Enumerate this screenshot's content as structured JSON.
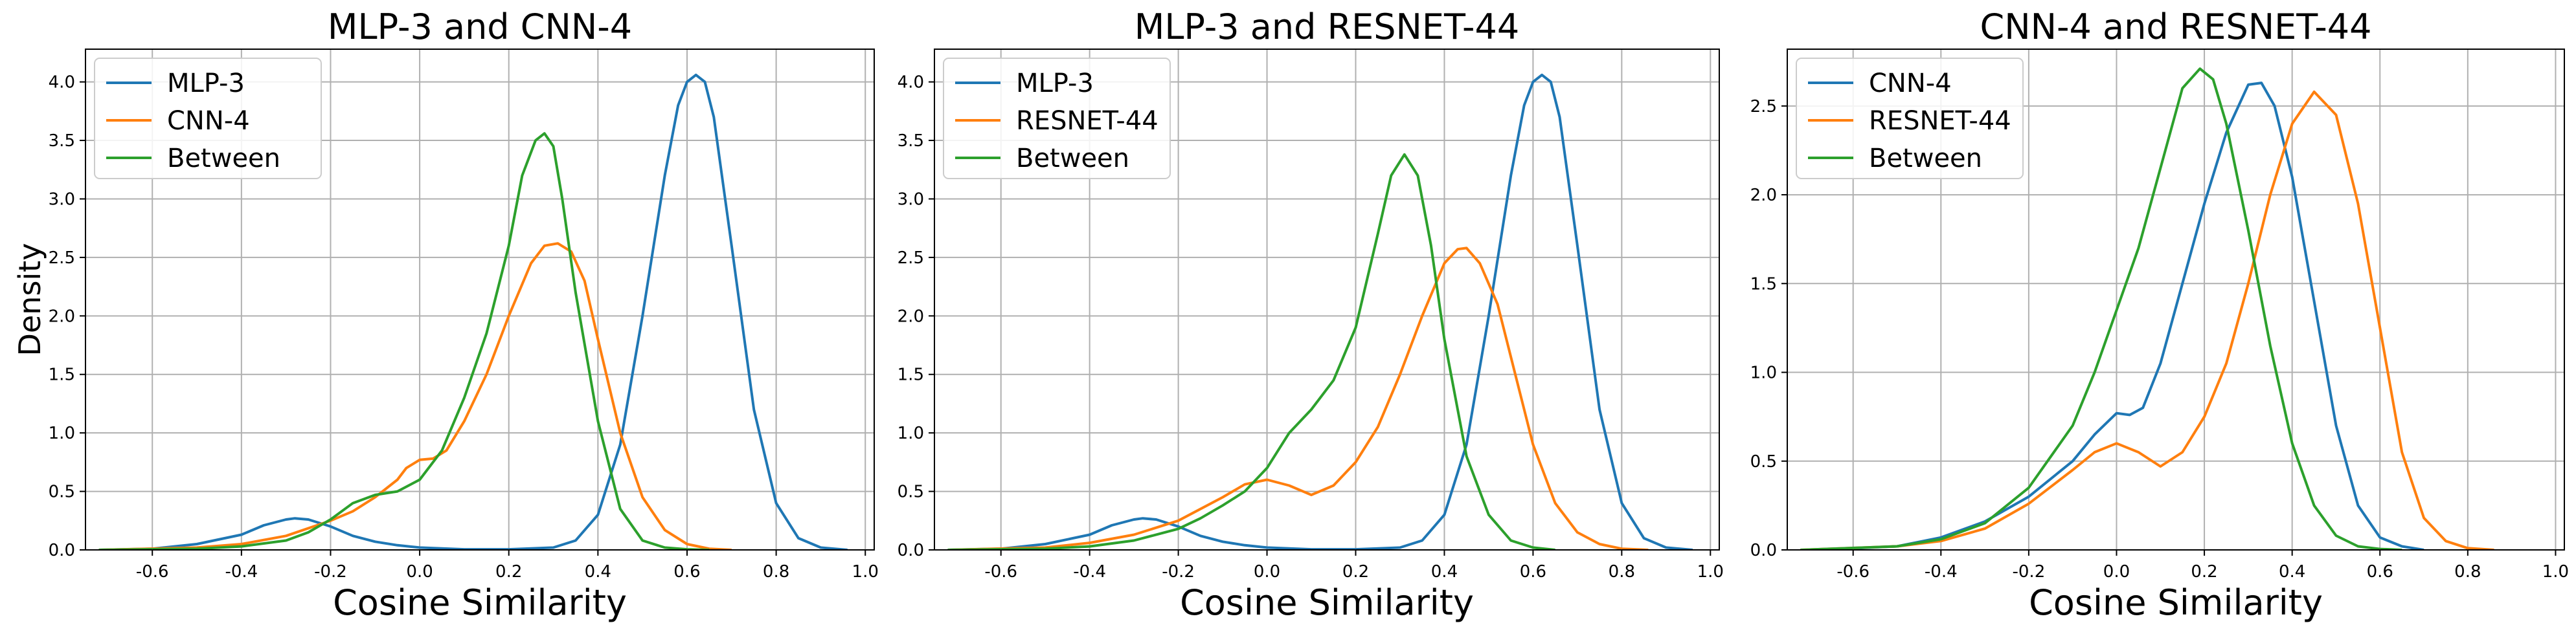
{
  "chart_data": [
    {
      "type": "line",
      "title": "MLP-3 and CNN-4",
      "xlabel": "Cosine Similarity",
      "ylabel": "Density",
      "xlim": [
        -0.75,
        1.02
      ],
      "ylim": [
        0,
        4.28
      ],
      "xticks": [
        "-0.6",
        "-0.4",
        "-0.2",
        "0.0",
        "0.2",
        "0.4",
        "0.6",
        "0.8",
        "1.0"
      ],
      "yticks": [
        "0.0",
        "0.5",
        "1.0",
        "1.5",
        "2.0",
        "2.5",
        "3.0",
        "3.5",
        "4.0"
      ],
      "grid": true,
      "legend_position": "top-left",
      "series": [
        {
          "name": "MLP-3",
          "color": "#1f77b4",
          "x": [
            -0.72,
            -0.6,
            -0.5,
            -0.4,
            -0.35,
            -0.3,
            -0.28,
            -0.25,
            -0.2,
            -0.15,
            -0.1,
            -0.05,
            0.0,
            0.1,
            0.2,
            0.3,
            0.35,
            0.4,
            0.45,
            0.5,
            0.55,
            0.58,
            0.6,
            0.62,
            0.64,
            0.66,
            0.7,
            0.75,
            0.8,
            0.85,
            0.9,
            0.96
          ],
          "y": [
            0,
            0.01,
            0.05,
            0.13,
            0.21,
            0.26,
            0.27,
            0.26,
            0.2,
            0.12,
            0.07,
            0.04,
            0.02,
            0.005,
            0.005,
            0.02,
            0.08,
            0.3,
            0.9,
            2.0,
            3.2,
            3.8,
            4.0,
            4.06,
            4.0,
            3.7,
            2.6,
            1.2,
            0.4,
            0.1,
            0.02,
            0
          ]
        },
        {
          "name": "CNN-4",
          "color": "#ff7f0e",
          "x": [
            -0.72,
            -0.5,
            -0.4,
            -0.3,
            -0.2,
            -0.15,
            -0.1,
            -0.05,
            -0.03,
            0.0,
            0.03,
            0.06,
            0.1,
            0.15,
            0.2,
            0.25,
            0.28,
            0.31,
            0.34,
            0.37,
            0.4,
            0.45,
            0.5,
            0.55,
            0.6,
            0.65,
            0.7
          ],
          "y": [
            0,
            0.02,
            0.05,
            0.12,
            0.25,
            0.33,
            0.45,
            0.6,
            0.7,
            0.77,
            0.78,
            0.85,
            1.1,
            1.5,
            2.0,
            2.45,
            2.6,
            2.62,
            2.55,
            2.3,
            1.8,
            1.0,
            0.45,
            0.17,
            0.05,
            0.01,
            0
          ]
        },
        {
          "name": "Between",
          "color": "#2ca02c",
          "x": [
            -0.72,
            -0.5,
            -0.4,
            -0.3,
            -0.25,
            -0.2,
            -0.15,
            -0.1,
            -0.05,
            0.0,
            0.05,
            0.1,
            0.15,
            0.2,
            0.23,
            0.26,
            0.28,
            0.3,
            0.32,
            0.35,
            0.4,
            0.45,
            0.5,
            0.55,
            0.6,
            0.65
          ],
          "y": [
            0,
            0.01,
            0.03,
            0.08,
            0.15,
            0.26,
            0.4,
            0.47,
            0.5,
            0.6,
            0.85,
            1.3,
            1.85,
            2.6,
            3.2,
            3.5,
            3.56,
            3.45,
            3.0,
            2.2,
            1.1,
            0.35,
            0.08,
            0.02,
            0.005,
            0
          ]
        }
      ]
    },
    {
      "type": "line",
      "title": "MLP-3 and RESNET-44",
      "xlabel": "Cosine Similarity",
      "ylabel": "",
      "xlim": [
        -0.75,
        1.02
      ],
      "ylim": [
        0,
        4.28
      ],
      "xticks": [
        "-0.6",
        "-0.4",
        "-0.2",
        "0.0",
        "0.2",
        "0.4",
        "0.6",
        "0.8",
        "1.0"
      ],
      "yticks": [
        "0.0",
        "0.5",
        "1.0",
        "1.5",
        "2.0",
        "2.5",
        "3.0",
        "3.5",
        "4.0"
      ],
      "grid": true,
      "legend_position": "top-left",
      "series": [
        {
          "name": "MLP-3",
          "color": "#1f77b4",
          "x": [
            -0.72,
            -0.6,
            -0.5,
            -0.4,
            -0.35,
            -0.3,
            -0.28,
            -0.25,
            -0.2,
            -0.15,
            -0.1,
            -0.05,
            0.0,
            0.1,
            0.2,
            0.3,
            0.35,
            0.4,
            0.45,
            0.5,
            0.55,
            0.58,
            0.6,
            0.62,
            0.64,
            0.66,
            0.7,
            0.75,
            0.8,
            0.85,
            0.9,
            0.96
          ],
          "y": [
            0,
            0.01,
            0.05,
            0.13,
            0.21,
            0.26,
            0.27,
            0.26,
            0.2,
            0.12,
            0.07,
            0.04,
            0.02,
            0.005,
            0.005,
            0.02,
            0.08,
            0.3,
            0.9,
            2.0,
            3.2,
            3.8,
            4.0,
            4.06,
            4.0,
            3.7,
            2.6,
            1.2,
            0.4,
            0.1,
            0.02,
            0
          ]
        },
        {
          "name": "RESNET-44",
          "color": "#ff7f0e",
          "x": [
            -0.72,
            -0.5,
            -0.4,
            -0.3,
            -0.2,
            -0.1,
            -0.05,
            0.0,
            0.05,
            0.1,
            0.15,
            0.2,
            0.25,
            0.3,
            0.35,
            0.4,
            0.43,
            0.45,
            0.48,
            0.52,
            0.56,
            0.6,
            0.65,
            0.7,
            0.75,
            0.8,
            0.86
          ],
          "y": [
            0,
            0.02,
            0.06,
            0.13,
            0.25,
            0.45,
            0.56,
            0.6,
            0.55,
            0.47,
            0.55,
            0.75,
            1.05,
            1.5,
            2.0,
            2.45,
            2.57,
            2.58,
            2.45,
            2.1,
            1.5,
            0.9,
            0.4,
            0.15,
            0.05,
            0.01,
            0
          ]
        },
        {
          "name": "Between",
          "color": "#2ca02c",
          "x": [
            -0.72,
            -0.5,
            -0.4,
            -0.3,
            -0.2,
            -0.15,
            -0.1,
            -0.05,
            0.0,
            0.05,
            0.1,
            0.15,
            0.2,
            0.25,
            0.28,
            0.31,
            0.34,
            0.37,
            0.4,
            0.45,
            0.5,
            0.55,
            0.6,
            0.65
          ],
          "y": [
            0,
            0.01,
            0.03,
            0.08,
            0.18,
            0.27,
            0.38,
            0.5,
            0.7,
            1.0,
            1.2,
            1.45,
            1.9,
            2.7,
            3.2,
            3.38,
            3.2,
            2.6,
            1.8,
            0.8,
            0.3,
            0.08,
            0.02,
            0
          ]
        }
      ]
    },
    {
      "type": "line",
      "title": "CNN-4 and RESNET-44",
      "xlabel": "Cosine Similarity",
      "ylabel": "",
      "xlim": [
        -0.75,
        1.02
      ],
      "ylim": [
        0,
        2.82
      ],
      "xticks": [
        "-0.6",
        "-0.4",
        "-0.2",
        "0.0",
        "0.2",
        "0.4",
        "0.6",
        "0.8",
        "1.0"
      ],
      "yticks": [
        "0.0",
        "0.5",
        "1.0",
        "1.5",
        "2.0",
        "2.5"
      ],
      "grid": true,
      "legend_position": "top-left",
      "series": [
        {
          "name": "CNN-4",
          "color": "#1f77b4",
          "x": [
            -0.68,
            -0.5,
            -0.4,
            -0.3,
            -0.2,
            -0.1,
            -0.05,
            0.0,
            0.03,
            0.06,
            0.1,
            0.15,
            0.2,
            0.25,
            0.3,
            0.33,
            0.36,
            0.4,
            0.45,
            0.5,
            0.55,
            0.6,
            0.65,
            0.7
          ],
          "y": [
            0,
            0.02,
            0.07,
            0.16,
            0.3,
            0.5,
            0.65,
            0.77,
            0.76,
            0.8,
            1.05,
            1.5,
            1.95,
            2.35,
            2.62,
            2.63,
            2.5,
            2.1,
            1.4,
            0.7,
            0.25,
            0.07,
            0.02,
            0
          ]
        },
        {
          "name": "RESNET-44",
          "color": "#ff7f0e",
          "x": [
            -0.72,
            -0.5,
            -0.4,
            -0.3,
            -0.2,
            -0.1,
            -0.05,
            0.0,
            0.05,
            0.1,
            0.15,
            0.2,
            0.25,
            0.3,
            0.35,
            0.4,
            0.45,
            0.5,
            0.55,
            0.6,
            0.65,
            0.7,
            0.75,
            0.8,
            0.86
          ],
          "y": [
            0,
            0.02,
            0.05,
            0.12,
            0.26,
            0.45,
            0.55,
            0.6,
            0.55,
            0.47,
            0.55,
            0.75,
            1.05,
            1.5,
            2.0,
            2.4,
            2.58,
            2.45,
            1.95,
            1.25,
            0.55,
            0.18,
            0.05,
            0.01,
            0
          ]
        },
        {
          "name": "Between",
          "color": "#2ca02c",
          "x": [
            -0.72,
            -0.5,
            -0.4,
            -0.3,
            -0.2,
            -0.1,
            -0.05,
            0.0,
            0.05,
            0.1,
            0.15,
            0.19,
            0.22,
            0.25,
            0.3,
            0.35,
            0.4,
            0.45,
            0.5,
            0.55,
            0.6,
            0.65
          ],
          "y": [
            0,
            0.02,
            0.06,
            0.15,
            0.35,
            0.7,
            1.0,
            1.35,
            1.7,
            2.15,
            2.6,
            2.71,
            2.65,
            2.4,
            1.8,
            1.15,
            0.6,
            0.25,
            0.08,
            0.02,
            0.005,
            0
          ]
        }
      ]
    }
  ]
}
